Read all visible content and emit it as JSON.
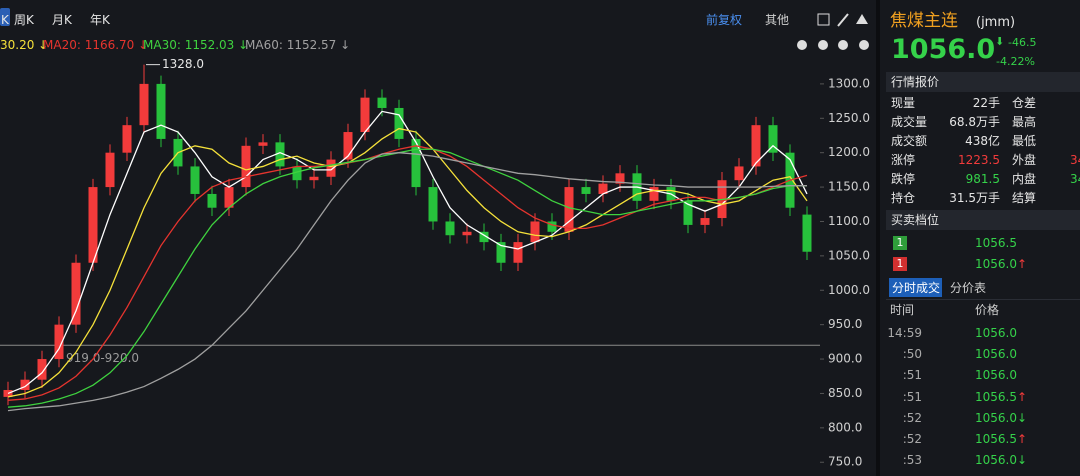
{
  "toolbar": {
    "periods": [
      "K",
      "周K",
      "月K",
      "年K"
    ],
    "adjust": "前复权",
    "other": "其他"
  },
  "chart_data": {
    "type": "candlestick",
    "open": [
      845,
      855,
      870,
      900,
      950,
      1040,
      1150,
      1200,
      1240,
      1300,
      1220,
      1180,
      1140,
      1120,
      1150,
      1210,
      1215,
      1180,
      1160,
      1165,
      1190,
      1230,
      1280,
      1265,
      1220,
      1150,
      1100,
      1080,
      1085,
      1070,
      1040,
      1070,
      1100,
      1085,
      1150,
      1140,
      1155,
      1170,
      1130,
      1150,
      1130,
      1095,
      1105,
      1160,
      1180,
      1240,
      1200,
      1110
    ],
    "high": [
      867,
      882,
      912,
      962,
      1052,
      1162,
      1212,
      1252,
      1328,
      1312,
      1232,
      1192,
      1152,
      1162,
      1222,
      1227,
      1227,
      1192,
      1177,
      1202,
      1242,
      1292,
      1292,
      1277,
      1232,
      1162,
      1112,
      1097,
      1097,
      1082,
      1082,
      1112,
      1112,
      1162,
      1162,
      1167,
      1182,
      1182,
      1162,
      1162,
      1142,
      1117,
      1172,
      1192,
      1252,
      1252,
      1212,
      1122
    ],
    "low": [
      833,
      843,
      858,
      888,
      938,
      1028,
      1138,
      1188,
      1228,
      1208,
      1168,
      1128,
      1108,
      1108,
      1138,
      1198,
      1168,
      1148,
      1148,
      1153,
      1178,
      1218,
      1253,
      1208,
      1138,
      1088,
      1068,
      1068,
      1058,
      1028,
      1028,
      1058,
      1073,
      1073,
      1128,
      1128,
      1143,
      1118,
      1118,
      1118,
      1083,
      1083,
      1093,
      1148,
      1168,
      1188,
      1108,
      1044
    ],
    "close": [
      855,
      870,
      900,
      950,
      1040,
      1150,
      1200,
      1240,
      1300,
      1220,
      1180,
      1140,
      1120,
      1150,
      1210,
      1215,
      1180,
      1160,
      1165,
      1190,
      1230,
      1280,
      1265,
      1220,
      1150,
      1100,
      1080,
      1085,
      1070,
      1040,
      1070,
      1100,
      1085,
      1150,
      1140,
      1155,
      1170,
      1130,
      1150,
      1130,
      1095,
      1105,
      1160,
      1180,
      1240,
      1200,
      1120,
      1056
    ],
    "up_color": "#f23b3b",
    "down_color": "#27c13c",
    "ylim": [
      730,
      1342
    ],
    "yticks": [
      {
        "value": 750,
        "label": "750.0"
      },
      {
        "value": 800,
        "label": "800.0"
      },
      {
        "value": 850,
        "label": "850.0"
      },
      {
        "value": 900,
        "label": "900.0"
      },
      {
        "value": 950,
        "label": "950.0"
      },
      {
        "value": 1000,
        "label": "1000.0"
      },
      {
        "value": 1050,
        "label": "1050.0"
      },
      {
        "value": 1100,
        "label": "1100.0"
      },
      {
        "value": 1150,
        "label": "1150.0"
      },
      {
        "value": 1200,
        "label": "1200.0"
      },
      {
        "value": 1250,
        "label": "1250.0"
      },
      {
        "value": 1300,
        "label": "1300.0"
      }
    ],
    "series": [
      {
        "color": "#ffffff",
        "values": [
          850,
          860,
          880,
          915,
          970,
          1040,
          1110,
          1170,
          1230,
          1240,
          1230,
          1200,
          1165,
          1150,
          1165,
          1190,
          1200,
          1190,
          1175,
          1175,
          1195,
          1230,
          1260,
          1255,
          1215,
          1165,
          1120,
          1095,
          1080,
          1065,
          1060,
          1070,
          1080,
          1100,
          1120,
          1140,
          1150,
          1150,
          1145,
          1140,
          1125,
          1115,
          1125,
          1150,
          1185,
          1210,
          1190,
          1140
        ]
      },
      {
        "name": "30.20 ↓",
        "color": "#f5e13a",
        "values": [
          845,
          850,
          860,
          880,
          910,
          950,
          1000,
          1060,
          1120,
          1170,
          1200,
          1210,
          1205,
          1185,
          1175,
          1180,
          1190,
          1195,
          1185,
          1180,
          1185,
          1200,
          1220,
          1235,
          1230,
          1205,
          1175,
          1145,
          1120,
          1100,
          1085,
          1080,
          1078,
          1085,
          1095,
          1110,
          1125,
          1140,
          1145,
          1145,
          1140,
          1130,
          1125,
          1130,
          1145,
          1160,
          1165,
          1130
        ]
      },
      {
        "name": "MA20: 1166.70 ↓",
        "color": "#e5342e",
        "values": [
          840,
          842,
          848,
          858,
          875,
          900,
          935,
          975,
          1020,
          1065,
          1100,
          1130,
          1150,
          1160,
          1165,
          1170,
          1175,
          1180,
          1180,
          1182,
          1185,
          1190,
          1198,
          1205,
          1210,
          1205,
          1195,
          1180,
          1160,
          1140,
          1120,
          1105,
          1095,
          1090,
          1090,
          1095,
          1105,
          1115,
          1125,
          1130,
          1135,
          1135,
          1130,
          1135,
          1140,
          1150,
          1160,
          1167
        ]
      },
      {
        "name": "MA30: 1152.03 ↓",
        "color": "#3fd23f",
        "values": [
          830,
          832,
          836,
          842,
          850,
          862,
          880,
          905,
          940,
          980,
          1020,
          1060,
          1095,
          1120,
          1140,
          1155,
          1165,
          1172,
          1178,
          1182,
          1186,
          1190,
          1195,
          1200,
          1205,
          1205,
          1200,
          1190,
          1180,
          1170,
          1160,
          1145,
          1130,
          1120,
          1115,
          1110,
          1110,
          1115,
          1120,
          1125,
          1130,
          1130,
          1132,
          1135,
          1140,
          1148,
          1152,
          1152
        ]
      },
      {
        "name": "MA60: 1152.57 ↓",
        "color": "#a0a0a0",
        "values": [
          825,
          828,
          830,
          832,
          836,
          840,
          845,
          852,
          860,
          872,
          885,
          900,
          920,
          945,
          970,
          1000,
          1030,
          1060,
          1095,
          1130,
          1160,
          1185,
          1198,
          1200,
          1198,
          1195,
          1190,
          1185,
          1180,
          1175,
          1170,
          1168,
          1165,
          1162,
          1160,
          1158,
          1157,
          1155,
          1153,
          1152,
          1150,
          1150,
          1150,
          1150,
          1150,
          1151,
          1152,
          1152
        ]
      }
    ],
    "peak_label": {
      "value": 1328,
      "label": "1328.0"
    },
    "price_line": {
      "value": 920,
      "label": "919.0-920.0"
    }
  },
  "instrument": {
    "name": "焦煤主连",
    "code": "(jmm)",
    "price": "1056.0",
    "change": "-46.5",
    "change_pct": "-4.22%"
  },
  "quote": {
    "title": "行情报价",
    "rows": [
      {
        "label": "现量",
        "value": "22手",
        "label2": "仓差"
      },
      {
        "label": "成交量",
        "value": "68.8万手",
        "label2": "最高"
      },
      {
        "label": "成交额",
        "value": "438亿",
        "label2": "最低"
      },
      {
        "label": "涨停",
        "value": "1223.5",
        "tone": "up",
        "label2": "外盘",
        "value2": "34",
        "tone2": "up"
      },
      {
        "label": "跌停",
        "value": "981.5",
        "tone": "down",
        "label2": "内盘",
        "value2": "34",
        "tone2": "down"
      },
      {
        "label": "持仓",
        "value": "31.5万手",
        "label2": "结算"
      }
    ]
  },
  "order_book": {
    "title": "买卖档位",
    "levels": [
      {
        "level": "1",
        "price": "1056.5",
        "box": "down"
      },
      {
        "level": "1",
        "price": "1056.0",
        "box": "up",
        "arrow": "↑"
      }
    ]
  },
  "trades": {
    "tabs": [
      "分时成交",
      "分价表"
    ],
    "columns": [
      "时间",
      "价格"
    ],
    "rows": [
      {
        "time": "14:59",
        "price": "1056.0"
      },
      {
        "time": ":50",
        "price": "1056.0"
      },
      {
        "time": ":51",
        "price": "1056.0"
      },
      {
        "time": ":51",
        "price": "1056.5",
        "arrow": "↑"
      },
      {
        "time": ":52",
        "price": "1056.0",
        "arrow": "↓"
      },
      {
        "time": ":52",
        "price": "1056.5",
        "arrow": "↑"
      },
      {
        "time": ":53",
        "price": "1056.0",
        "arrow": "↓"
      }
    ]
  }
}
